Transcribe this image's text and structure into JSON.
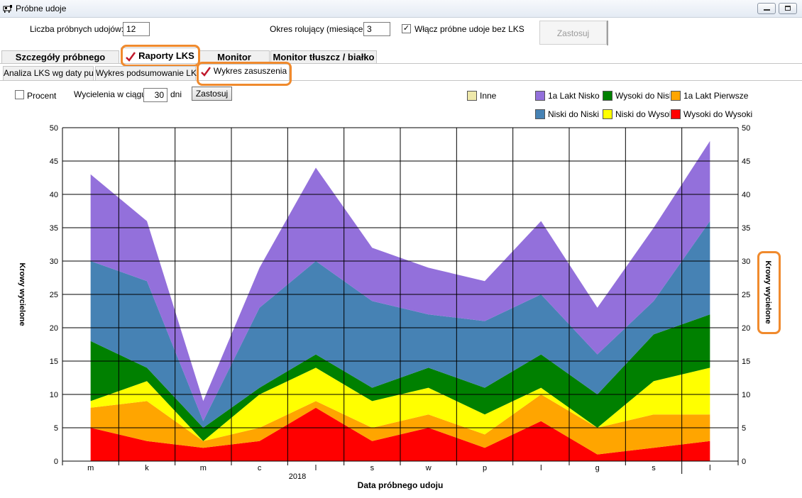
{
  "window": {
    "title": "Próbne udoje"
  },
  "controls": {
    "trial_count_label": "Liczba próbnych udojów:",
    "trial_count_value": "12",
    "rolling_period_label": "Okres rolujący (miesiące)",
    "rolling_period_value": "3",
    "include_label": "Włącz próbne udoje bez LKS",
    "include_checked": "✓",
    "apply_label": "Zastosuj"
  },
  "tabs_main": [
    {
      "label": "Szczegóły próbnego udoju"
    },
    {
      "label": "Raporty LKS"
    },
    {
      "label": "Monitor żywienia"
    },
    {
      "label": "Monitor tłuszcz / białko"
    }
  ],
  "tabs_sub": [
    {
      "label": "Analiza LKS wg daty pu"
    },
    {
      "label": "Wykres podsumowanie LKS"
    },
    {
      "label": "Wykres zasuszenia"
    }
  ],
  "chart_controls": {
    "percent_label": "Procent",
    "within_label": "Wycielenia w ciągu",
    "within_value": "30",
    "days_label": "dni",
    "apply_label": "Zastosuj"
  },
  "chart_data": {
    "type": "area",
    "stacked": true,
    "xlabel": "Data próbnego udoju",
    "ylabel": "Krowy wycielone",
    "y2label": "Krowy wycielone",
    "year_label": "2018",
    "ylim": [
      0,
      50
    ],
    "yticks": [
      0,
      5,
      10,
      15,
      20,
      25,
      30,
      35,
      40,
      45,
      50
    ],
    "grid": true,
    "legend_position": "top-right",
    "categories": [
      "m",
      "k",
      "m",
      "c",
      "l",
      "s",
      "w",
      "p",
      "l",
      "g",
      "s",
      "l"
    ],
    "series": [
      {
        "name": "Wysoki do Wysoki",
        "color": "#ff0000",
        "values": [
          5,
          3,
          2,
          3,
          8,
          3,
          5,
          2,
          6,
          1,
          2,
          3
        ]
      },
      {
        "name": "1a Lakt Pierwsze",
        "color": "#ffa500",
        "values": [
          3,
          6,
          1,
          2,
          1,
          2,
          2,
          2,
          4,
          4,
          5,
          4
        ]
      },
      {
        "name": "Niski do Wysoki",
        "color": "#ffff00",
        "values": [
          1,
          3,
          0,
          5,
          5,
          4,
          4,
          3,
          1,
          0,
          5,
          7
        ]
      },
      {
        "name": "Wysoki do Niski",
        "color": "#008000",
        "values": [
          9,
          2,
          2,
          1,
          2,
          2,
          3,
          4,
          5,
          5,
          7,
          8
        ]
      },
      {
        "name": "Niski do Niski",
        "color": "#4682b4",
        "values": [
          12,
          13,
          1,
          12,
          14,
          13,
          8,
          10,
          9,
          6,
          5,
          14
        ]
      },
      {
        "name": "1a Lakt Nisko",
        "color": "#9370db",
        "values": [
          13,
          9,
          3,
          6,
          14,
          8,
          7,
          6,
          11,
          7,
          11,
          12
        ]
      },
      {
        "name": "Inne",
        "color": "#eee8aa",
        "values": [
          0,
          0,
          0,
          0,
          0,
          0,
          0,
          0,
          0,
          0,
          0,
          0
        ]
      }
    ]
  }
}
